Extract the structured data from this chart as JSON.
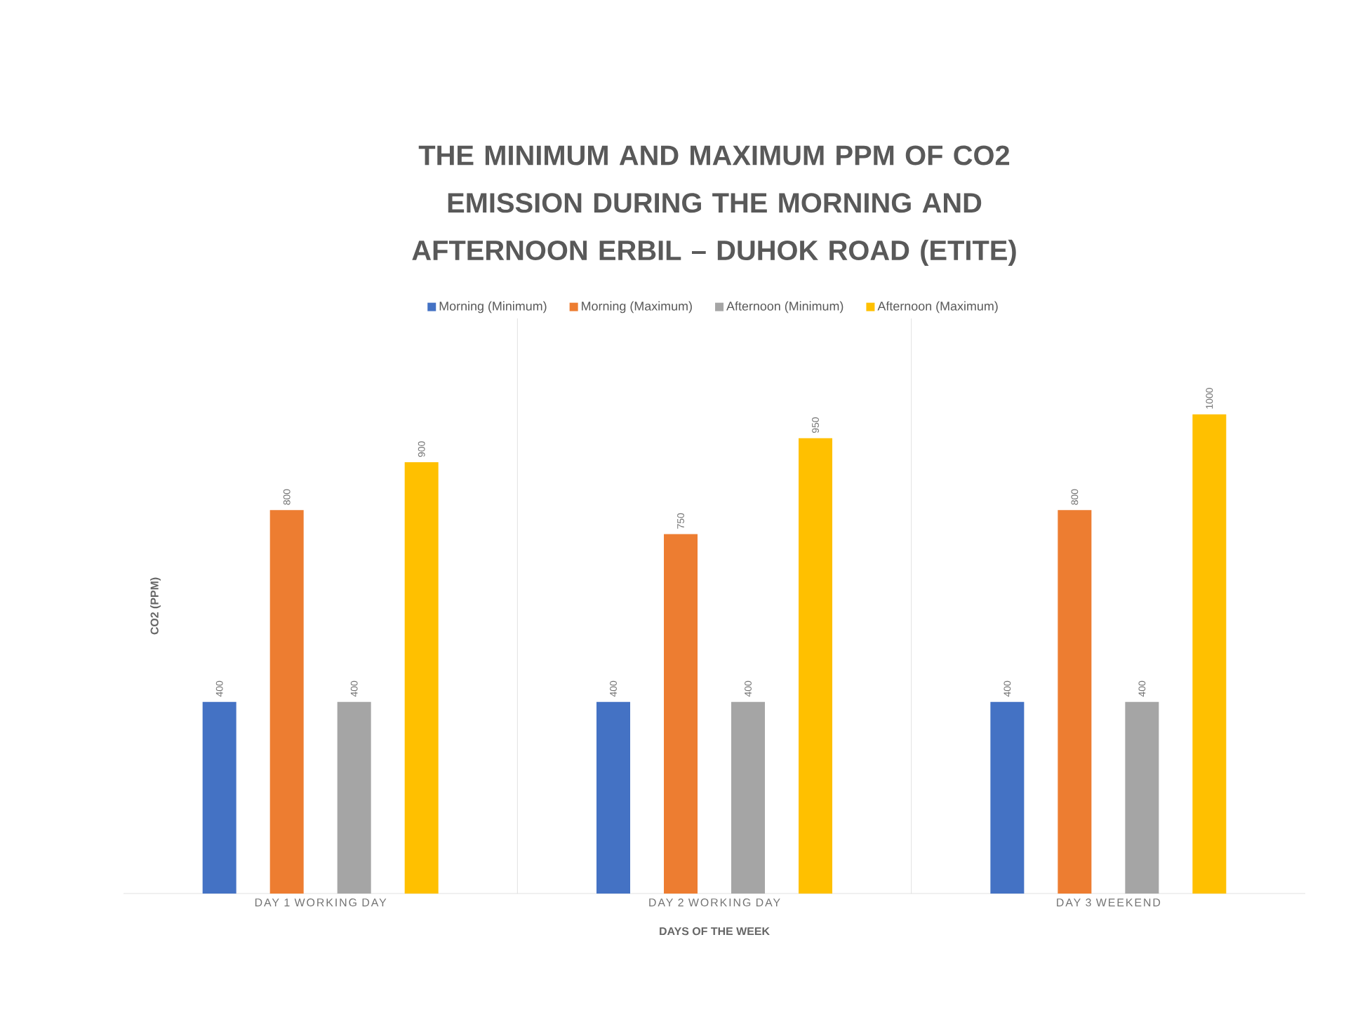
{
  "chart_data": {
    "type": "bar",
    "title": "THE MINIMUM AND MAXIMUM PPM OF CO2 EMISSION DURING THE MORNING AND AFTERNOON ERBIL – DUHOK ROAD (ETITE)",
    "xlabel": "DAYS OF THE WEEK",
    "ylabel": "CO2 (PPM)",
    "categories": [
      "DAY 1 WORKING DAY",
      "DAY 2 WORKING DAY",
      "DAY 3 WEEKEND"
    ],
    "series": [
      {
        "name": "Morning (Minimum)",
        "color": "#4472c4",
        "values": [
          400,
          400,
          400
        ]
      },
      {
        "name": "Morning (Maximum)",
        "color": "#ed7d31",
        "values": [
          800,
          750,
          800
        ]
      },
      {
        "name": "Afternoon (Minimum)",
        "color": "#a5a5a5",
        "values": [
          400,
          400,
          400
        ]
      },
      {
        "name": "Afternoon (Maximum)",
        "color": "#ffc000",
        "values": [
          900,
          950,
          1000
        ]
      }
    ],
    "ylim": [
      0,
      1200
    ],
    "data_labels": true,
    "tick_labels": "x",
    "grid": "x",
    "legend": "top"
  }
}
